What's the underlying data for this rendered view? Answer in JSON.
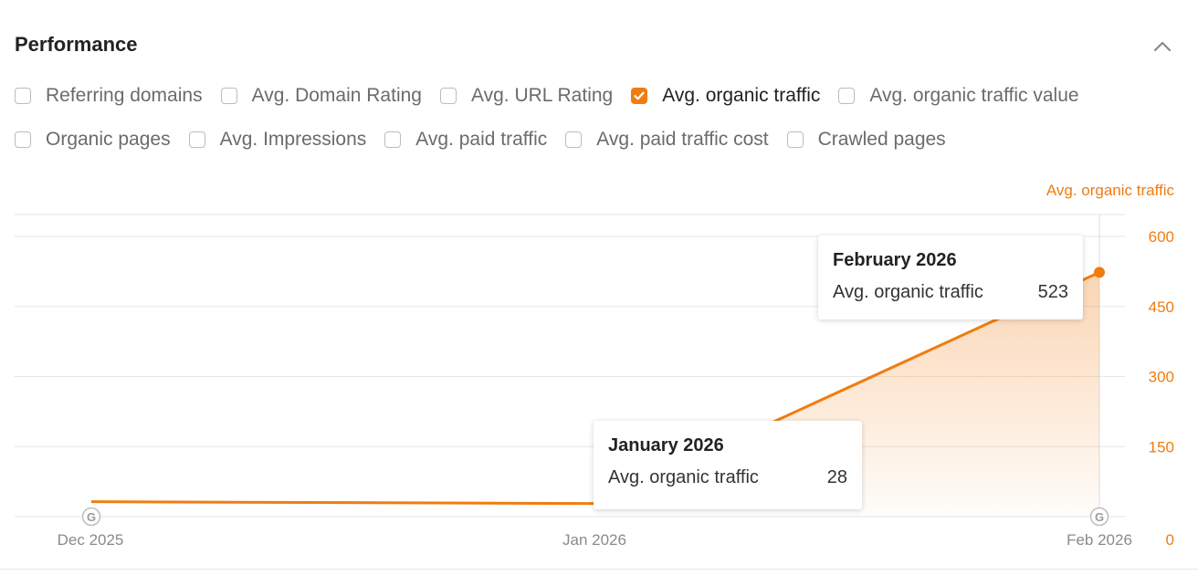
{
  "section": {
    "title": "Performance"
  },
  "filters": [
    {
      "label": "Referring domains",
      "checked": false
    },
    {
      "label": "Avg. Domain Rating",
      "checked": false
    },
    {
      "label": "Avg. URL Rating",
      "checked": false
    },
    {
      "label": "Avg. organic traffic",
      "checked": true
    },
    {
      "label": "Avg. organic traffic value",
      "checked": false
    },
    {
      "label": "Organic pages",
      "checked": false
    },
    {
      "label": "Avg. Impressions",
      "checked": false
    },
    {
      "label": "Avg. paid traffic",
      "checked": false
    },
    {
      "label": "Avg. paid traffic cost",
      "checked": false
    },
    {
      "label": "Crawled pages",
      "checked": false
    }
  ],
  "colors": {
    "accent": "#f07c10",
    "grid": "#e6e6e6"
  },
  "chart_data": {
    "type": "area",
    "y_axis_title": "Avg. organic traffic",
    "x_ticks": [
      "Dec 2025",
      "Jan 2026",
      "Feb 2026"
    ],
    "y_ticks": [
      0,
      150,
      300,
      450,
      600
    ],
    "ylim": [
      0,
      600
    ],
    "x_range": [
      "2025-12",
      "2026-02"
    ],
    "update_markers": [
      "2025-12",
      "2026-02"
    ],
    "series": [
      {
        "name": "Avg. organic traffic",
        "points": [
          {
            "x": "2025-12",
            "y": 32
          },
          {
            "x": "2026-01",
            "y": 28
          },
          {
            "x": "2026-02",
            "y": 523
          }
        ]
      }
    ],
    "grid": true,
    "tooltips": [
      {
        "title": "January 2026",
        "label": "Avg. organic traffic",
        "value": "28"
      },
      {
        "title": "February 2026",
        "label": "Avg. organic traffic",
        "value": "523"
      }
    ]
  }
}
